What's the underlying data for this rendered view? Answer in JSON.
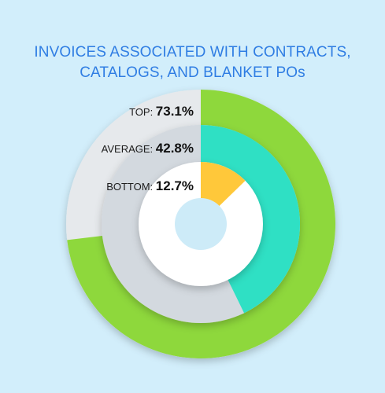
{
  "title_lines": [
    "INVOICES ASSOCIATED WITH CONTRACTS,",
    "CATALOGS, AND BLANKET POs"
  ],
  "chart_data": {
    "type": "pie",
    "subtype": "concentric-donut",
    "title": "INVOICES ASSOCIATED WITH CONTRACTS, CATALOGS, AND BLANKET POs",
    "series": [
      {
        "name": "TOP",
        "value": 73.1,
        "display": "73.1%",
        "color": "#8ed83c",
        "track_color": "#e6e9ec"
      },
      {
        "name": "AVERAGE",
        "value": 42.8,
        "display": "42.8%",
        "color": "#2fe0c4",
        "track_color": "#d3d9df"
      },
      {
        "name": "BOTTOM",
        "value": 12.7,
        "display": "12.7%",
        "color": "#ffc83a",
        "track_color": "#ffffff"
      }
    ],
    "unit": "%",
    "max": 100,
    "start": "12 o'clock",
    "direction": "clockwise",
    "legend": "inline labels, left of each ring",
    "center_hole_color": "#cdebf8"
  }
}
